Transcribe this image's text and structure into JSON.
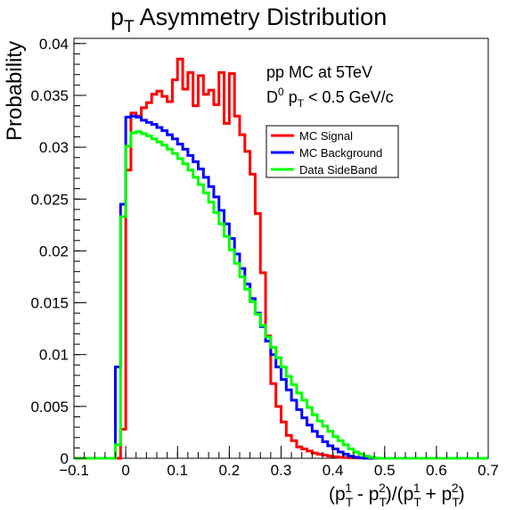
{
  "chart_data": {
    "type": "line",
    "title": "p_T Asymmetry Distribution",
    "title_parts": {
      "base": "p",
      "sub": "T",
      "rest": " Asymmetry Distribution"
    },
    "xlabel": "(p_T^1 - p_T^2)/(p_T^1 + p_T^2)",
    "ylabel": "Probability",
    "xlim": [
      -0.1,
      0.7
    ],
    "ylim": [
      0,
      0.0405
    ],
    "x_ticks": [
      -0.1,
      0,
      0.1,
      0.2,
      0.3,
      0.4,
      0.5,
      0.6,
      0.7
    ],
    "x_tick_labels": [
      "−0.1",
      "0",
      "0.1",
      "0.2",
      "0.3",
      "0.4",
      "0.5",
      "0.6",
      "0.7"
    ],
    "y_ticks": [
      0,
      0.005,
      0.01,
      0.015,
      0.02,
      0.025,
      0.03,
      0.035,
      0.04
    ],
    "y_tick_labels": [
      "0",
      "0.005",
      "0.01",
      "0.015",
      "0.02",
      "0.025",
      "0.03",
      "0.035",
      "0.04"
    ],
    "bin_width": 0.01,
    "bin_start": -0.1,
    "annotations": {
      "line1": "pp MC at 5TeV",
      "line2_prefix": "D",
      "line2_sup": "0",
      "line2_p": " p",
      "line2_sub": "T",
      "line2_rest": " < 0.5 GeV/c"
    },
    "legend": {
      "placement": "upper-right",
      "entries": [
        "MC Signal",
        "MC Background",
        "Data SideBand"
      ]
    },
    "series": [
      {
        "name": "MC Signal",
        "color": "#ff0000",
        "values": [
          0,
          0,
          0,
          0,
          0,
          0,
          0,
          0,
          0,
          0.0028,
          0.0278,
          0.0333,
          0.033,
          0.0338,
          0.0343,
          0.0351,
          0.0354,
          0.0349,
          0.0344,
          0.0365,
          0.0385,
          0.0356,
          0.0372,
          0.034,
          0.0369,
          0.0351,
          0.0355,
          0.0341,
          0.0372,
          0.0323,
          0.0371,
          0.033,
          0.0312,
          0.0296,
          0.0274,
          0.0236,
          0.0179,
          0.0118,
          0.0072,
          0.005,
          0.0035,
          0.0022,
          0.0017,
          0.0011,
          0.0009,
          0.0007,
          0.0005,
          0.0004,
          0.0003,
          0.0002,
          0.00015,
          0.0001,
          8e-05,
          5e-05,
          3e-05,
          2e-05,
          0,
          0,
          0,
          0,
          0,
          0,
          0,
          0,
          0,
          0,
          0,
          0,
          0,
          0,
          0,
          0,
          0,
          0,
          0,
          0,
          0,
          0,
          0,
          0
        ]
      },
      {
        "name": "MC Background",
        "color": "#0000ff",
        "values": [
          0,
          0,
          0,
          0,
          0,
          0,
          0,
          0,
          0.0088,
          0.0245,
          0.0329,
          0.033,
          0.0329,
          0.0326,
          0.0324,
          0.0322,
          0.0319,
          0.0316,
          0.0312,
          0.0308,
          0.0303,
          0.0298,
          0.0292,
          0.0286,
          0.0279,
          0.0271,
          0.0262,
          0.0252,
          0.0239,
          0.0226,
          0.0212,
          0.0197,
          0.0183,
          0.0168,
          0.0154,
          0.014,
          0.0127,
          0.0113,
          0.01,
          0.0088,
          0.0076,
          0.0066,
          0.0056,
          0.0047,
          0.0039,
          0.0032,
          0.0026,
          0.0021,
          0.0016,
          0.0012,
          0.0009,
          0.0006,
          0.0004,
          0.0002,
          0.0001,
          5e-05,
          0,
          0,
          0,
          0,
          0,
          0,
          0,
          0,
          0,
          0,
          0,
          0,
          0,
          0,
          0,
          0,
          0,
          0,
          0,
          0,
          0,
          0,
          0,
          0
        ]
      },
      {
        "name": "Data SideBand",
        "color": "#00ff00",
        "values": [
          0,
          0,
          0,
          0,
          0,
          0,
          0,
          0,
          0.0013,
          0.0233,
          0.0301,
          0.0314,
          0.0315,
          0.0313,
          0.0311,
          0.0308,
          0.0305,
          0.0302,
          0.0298,
          0.0294,
          0.0289,
          0.0284,
          0.0278,
          0.0271,
          0.0264,
          0.0256,
          0.0247,
          0.0237,
          0.0226,
          0.0214,
          0.0201,
          0.0188,
          0.0175,
          0.0163,
          0.0151,
          0.0139,
          0.0128,
          0.0117,
          0.0107,
          0.0097,
          0.0088,
          0.0079,
          0.0071,
          0.0063,
          0.0056,
          0.0049,
          0.0042,
          0.0036,
          0.0031,
          0.0026,
          0.0021,
          0.0017,
          0.0013,
          0.0009,
          0.0006,
          0.0004,
          0.0002,
          0.0001,
          2e-05,
          0,
          0,
          0,
          0,
          0,
          0,
          0,
          0,
          0,
          0,
          0,
          0,
          0,
          0,
          0,
          0,
          0,
          0,
          0,
          0,
          0
        ]
      }
    ]
  }
}
